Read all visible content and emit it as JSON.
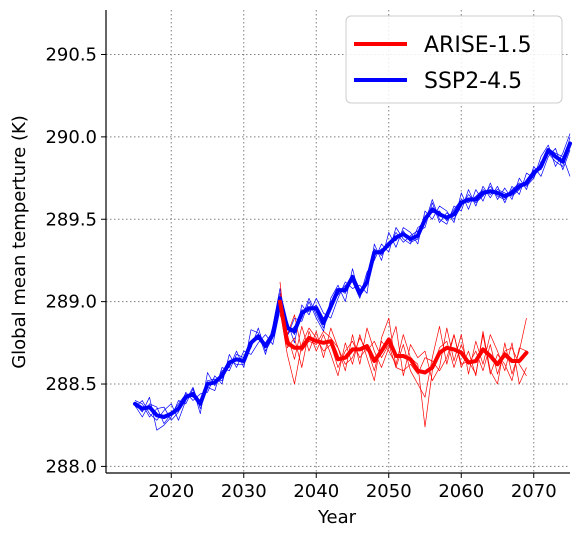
{
  "chart_data": {
    "type": "line",
    "title": "",
    "xlabel": "Year",
    "ylabel": "Global mean temperture (K)",
    "xlim": [
      2011,
      2075
    ],
    "ylim": [
      287.96,
      290.77
    ],
    "xticks": [
      2020,
      2030,
      2040,
      2050,
      2060,
      2070
    ],
    "yticks": [
      288.0,
      288.5,
      289.0,
      289.5,
      290.0,
      290.5
    ],
    "ytick_labels": [
      "288.0",
      "288.5",
      "289.0",
      "289.5",
      "290.0",
      "290.5"
    ],
    "grid": true,
    "legend_position": "top-right",
    "colors": {
      "ARISE-1.5": "#ff0000",
      "SSP2-4.5": "#0000ff"
    },
    "series": [
      {
        "name": "SSP2-4.5",
        "role": "ensemble-mean",
        "x": [
          2015,
          2016,
          2017,
          2018,
          2019,
          2020,
          2021,
          2022,
          2023,
          2024,
          2025,
          2026,
          2027,
          2028,
          2029,
          2030,
          2031,
          2032,
          2033,
          2034,
          2035,
          2036,
          2037,
          2038,
          2039,
          2040,
          2041,
          2042,
          2043,
          2044,
          2045,
          2046,
          2047,
          2048,
          2049,
          2050,
          2051,
          2052,
          2053,
          2054,
          2055,
          2056,
          2057,
          2058,
          2059,
          2060,
          2061,
          2062,
          2063,
          2064,
          2065,
          2066,
          2067,
          2068,
          2069,
          2070,
          2071,
          2072,
          2073,
          2074,
          2075
        ],
        "values": [
          288.38,
          288.35,
          288.36,
          288.31,
          288.3,
          288.32,
          288.35,
          288.42,
          288.44,
          288.38,
          288.5,
          288.51,
          288.55,
          288.63,
          288.65,
          288.64,
          288.75,
          288.79,
          288.73,
          288.8,
          289.02,
          288.84,
          288.82,
          288.93,
          288.96,
          288.96,
          288.87,
          288.97,
          289.07,
          289.07,
          289.15,
          289.05,
          289.12,
          289.3,
          289.3,
          289.35,
          289.39,
          289.41,
          289.38,
          289.4,
          289.5,
          289.56,
          289.53,
          289.51,
          289.53,
          289.6,
          289.62,
          289.62,
          289.66,
          289.67,
          289.66,
          289.64,
          289.66,
          289.7,
          289.72,
          289.78,
          289.82,
          289.92,
          289.88,
          289.85,
          289.96
        ]
      },
      {
        "name": "ARISE-1.5",
        "role": "ensemble-mean",
        "x": [
          2035,
          2036,
          2037,
          2038,
          2039,
          2040,
          2041,
          2042,
          2043,
          2044,
          2045,
          2046,
          2047,
          2048,
          2049,
          2050,
          2051,
          2052,
          2053,
          2054,
          2055,
          2056,
          2057,
          2058,
          2059,
          2060,
          2061,
          2062,
          2063,
          2064,
          2065,
          2066,
          2067,
          2068,
          2069
        ],
        "values": [
          289.0,
          288.75,
          288.72,
          288.72,
          288.78,
          288.76,
          288.75,
          288.76,
          288.65,
          288.66,
          288.71,
          288.71,
          288.73,
          288.64,
          288.7,
          288.77,
          288.67,
          288.67,
          288.65,
          288.58,
          288.57,
          288.6,
          288.69,
          288.72,
          288.71,
          288.69,
          288.63,
          288.64,
          288.71,
          288.67,
          288.62,
          288.68,
          288.64,
          288.64,
          288.69
        ]
      }
    ],
    "members": [
      {
        "group": "SSP2-4.5",
        "x0": 2015,
        "values": [
          288.38,
          288.33,
          288.42,
          288.22,
          288.25,
          288.3,
          288.4,
          288.38,
          288.47,
          288.32,
          288.57,
          288.49,
          288.58,
          288.6,
          288.7,
          288.6,
          288.83,
          288.81,
          288.68,
          288.85,
          289.08,
          288.79,
          288.9,
          288.88,
          289.0,
          288.9,
          288.82,
          289.02,
          289.1,
          289.0,
          289.2,
          289.03,
          289.18,
          289.25,
          289.35,
          289.3,
          289.45,
          289.38,
          289.35,
          289.45,
          289.48,
          289.62,
          289.5,
          289.47,
          289.58,
          289.55,
          289.68,
          289.58,
          289.7,
          289.63,
          289.7,
          289.6,
          289.7,
          289.65,
          289.78,
          289.75,
          289.88,
          289.95,
          289.82,
          289.9,
          290.02
        ]
      },
      {
        "group": "SSP2-4.5",
        "x0": 2015,
        "values": [
          288.4,
          288.38,
          288.3,
          288.35,
          288.36,
          288.28,
          288.33,
          288.45,
          288.4,
          288.44,
          288.45,
          288.55,
          288.5,
          288.68,
          288.6,
          288.7,
          288.68,
          288.75,
          288.8,
          288.74,
          288.95,
          288.88,
          288.75,
          288.98,
          288.92,
          289.02,
          288.93,
          288.9,
          289.02,
          289.12,
          289.08,
          289.1,
          289.05,
          289.35,
          289.25,
          289.42,
          289.33,
          289.45,
          289.42,
          289.35,
          289.55,
          289.5,
          289.58,
          289.55,
          289.48,
          289.66,
          289.56,
          289.68,
          289.61,
          289.72,
          289.62,
          289.69,
          289.62,
          289.75,
          289.68,
          289.82,
          289.76,
          289.88,
          289.93,
          289.8,
          289.92
        ]
      },
      {
        "group": "SSP2-4.5",
        "x0": 2015,
        "values": [
          288.36,
          288.4,
          288.32,
          288.28,
          288.34,
          288.38,
          288.28,
          288.4,
          288.48,
          288.35,
          288.48,
          288.46,
          288.6,
          288.58,
          288.68,
          288.66,
          288.72,
          288.84,
          288.7,
          288.78,
          289.05,
          288.8,
          288.85,
          288.9,
          289.02,
          288.92,
          288.84,
          289.0,
          289.04,
          289.1,
          289.12,
          289.02,
          289.15,
          289.28,
          289.32,
          289.33,
          289.42,
          289.36,
          289.4,
          289.43,
          289.45,
          289.6,
          289.48,
          289.54,
          289.5,
          289.58,
          289.65,
          289.6,
          289.64,
          289.7,
          289.64,
          289.62,
          289.68,
          289.72,
          289.7,
          289.75,
          289.85,
          289.9,
          289.85,
          289.82,
          290.0
        ]
      },
      {
        "group": "SSP2-4.5",
        "x0": 2015,
        "values": [
          288.37,
          288.3,
          288.38,
          288.36,
          288.26,
          288.32,
          288.38,
          288.44,
          288.42,
          288.4,
          288.52,
          288.53,
          288.52,
          288.64,
          288.62,
          288.62,
          288.76,
          288.77,
          288.75,
          288.82,
          289.0,
          288.86,
          288.8,
          288.95,
          288.94,
          288.98,
          288.9,
          288.95,
          289.08,
          289.05,
          289.16,
          289.07,
          289.1,
          289.32,
          289.28,
          289.36,
          289.37,
          289.43,
          289.36,
          289.38,
          289.52,
          289.54,
          289.55,
          289.49,
          289.56,
          289.62,
          289.6,
          289.64,
          289.68,
          289.65,
          289.68,
          289.66,
          289.64,
          289.68,
          289.74,
          289.8,
          289.8,
          289.93,
          289.9,
          289.88,
          289.76
        ]
      },
      {
        "group": "ARISE-1.5",
        "x0": 2035,
        "values": [
          289.12,
          288.72,
          288.78,
          288.6,
          288.82,
          288.7,
          288.8,
          288.68,
          288.55,
          288.75,
          288.62,
          288.8,
          288.66,
          288.52,
          288.78,
          288.9,
          288.6,
          288.74,
          288.58,
          288.5,
          288.42,
          288.66,
          288.85,
          288.62,
          288.8,
          288.6,
          288.7,
          288.55,
          288.82,
          288.58,
          288.5,
          288.75,
          288.56,
          288.7,
          288.9
        ]
      },
      {
        "group": "ARISE-1.5",
        "x0": 2035,
        "values": [
          288.92,
          288.8,
          288.65,
          288.85,
          288.7,
          288.82,
          288.66,
          288.84,
          288.72,
          288.58,
          288.8,
          288.62,
          288.84,
          288.7,
          288.6,
          288.72,
          288.85,
          288.55,
          288.74,
          288.66,
          288.7,
          288.52,
          288.6,
          288.84,
          288.64,
          288.8,
          288.56,
          288.76,
          288.62,
          288.8,
          288.7,
          288.58,
          288.75,
          288.5,
          288.6
        ]
      },
      {
        "group": "ARISE-1.5",
        "x0": 2035,
        "values": [
          288.95,
          288.68,
          288.5,
          288.74,
          288.84,
          288.78,
          288.7,
          288.74,
          288.6,
          288.7,
          288.76,
          288.66,
          288.72,
          288.58,
          288.76,
          288.7,
          288.62,
          288.8,
          288.66,
          288.62,
          288.24,
          288.58,
          288.72,
          288.76,
          288.6,
          288.74,
          288.62,
          288.7,
          288.58,
          288.74,
          288.56,
          288.7,
          288.72,
          288.62,
          288.55
        ]
      },
      {
        "group": "ARISE-1.5",
        "x0": 2035,
        "values": [
          289.05,
          288.8,
          288.92,
          288.7,
          288.76,
          288.74,
          288.82,
          288.78,
          288.72,
          288.62,
          288.66,
          288.78,
          288.7,
          288.76,
          288.66,
          288.74,
          288.6,
          288.58,
          288.62,
          288.56,
          288.66,
          288.64,
          288.58,
          288.66,
          288.8,
          288.62,
          288.64,
          288.56,
          288.8,
          288.56,
          288.68,
          288.62,
          288.52,
          288.72,
          288.7
        ]
      }
    ]
  }
}
